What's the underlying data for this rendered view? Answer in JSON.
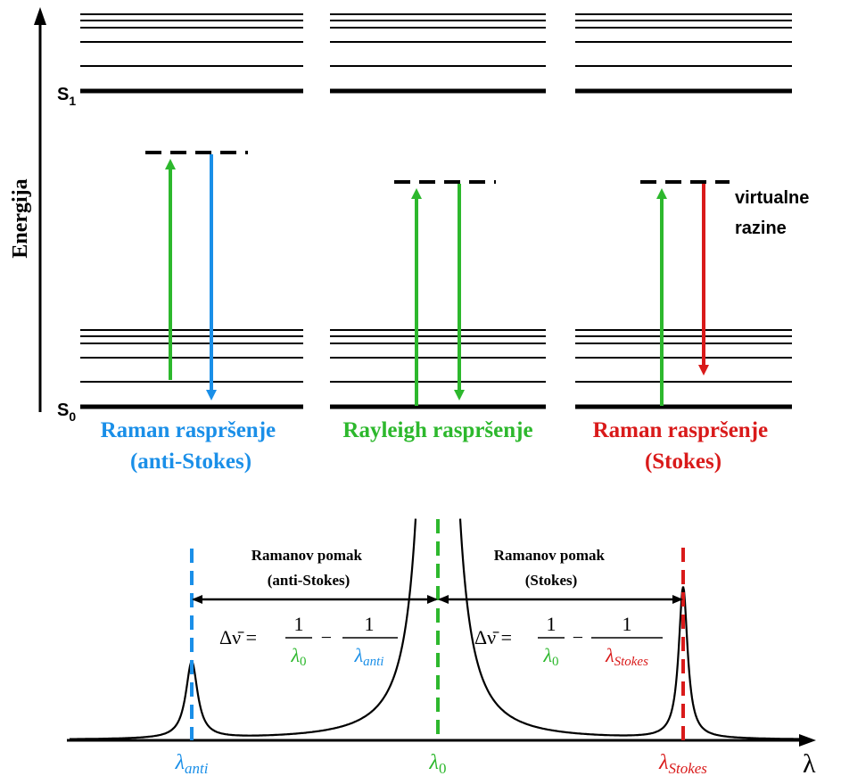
{
  "energy_axis": {
    "label": "Energija"
  },
  "levels": {
    "s1_label": "S",
    "s1_sub": "1",
    "s0_label": "S",
    "s0_sub": "0"
  },
  "virtual_label": {
    "line1": "virtualne",
    "line2": "razine"
  },
  "panels": [
    {
      "title_line1": "Raman raspršenje",
      "title_line2": "(anti-Stokes)",
      "color": "#1a8fe8",
      "process": "anti-Stokes"
    },
    {
      "title_line1": "Rayleigh raspršenje",
      "title_line2": "",
      "color": "#2db82d",
      "process": "Rayleigh"
    },
    {
      "title_line1": "Raman raspršenje",
      "title_line2": "(Stokes)",
      "color": "#d91a1a",
      "process": "Stokes"
    }
  ],
  "colors": {
    "anti": "#1a8fe8",
    "rayleigh": "#2db82d",
    "stokes": "#d91a1a",
    "line": "#000000"
  },
  "spectrum": {
    "axis_label": "λ",
    "lambda_anti": {
      "base": "λ",
      "sub": "anti"
    },
    "lambda_0": {
      "base": "λ",
      "sub": "0"
    },
    "lambda_stokes": {
      "base": "λ",
      "sub": "Stokes"
    },
    "shift_anti": {
      "line1": "Ramanov pomak",
      "line2": "(anti-Stokes)"
    },
    "shift_stokes": {
      "line1": "Ramanov pomak",
      "line2": "(Stokes)"
    },
    "formula": {
      "lhs": "Δν̄ =",
      "one": "1",
      "minus": "−",
      "den_0": "λ",
      "den_0_sub": "0",
      "anti_sub": "anti",
      "stokes_sub": "Stokes"
    }
  }
}
